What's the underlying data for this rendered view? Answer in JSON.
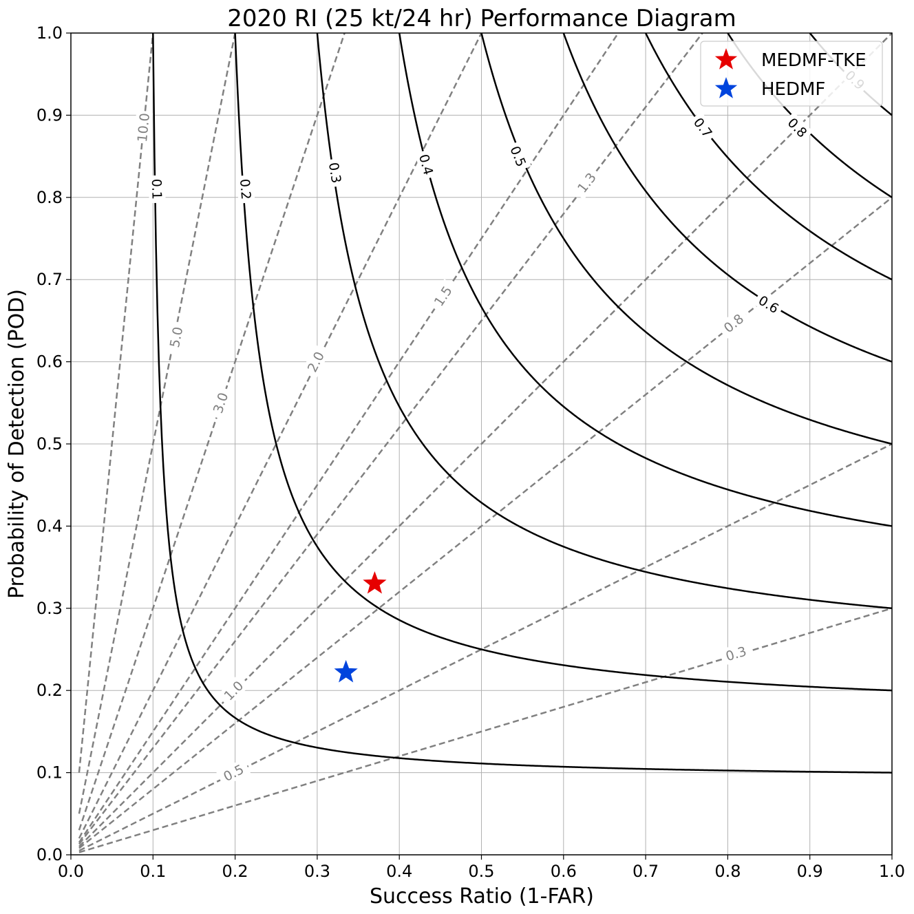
{
  "chart_data": {
    "type": "scatter",
    "title": "2020 RI (25 kt/24 hr) Performance Diagram",
    "xlabel": "Success Ratio (1-FAR)",
    "ylabel": "Probability of Detection (POD)",
    "xlim": [
      0,
      1
    ],
    "ylim": [
      0,
      1
    ],
    "x_ticks": [
      "0.0",
      "0.1",
      "0.2",
      "0.3",
      "0.4",
      "0.5",
      "0.6",
      "0.7",
      "0.8",
      "0.9",
      "1.0"
    ],
    "y_ticks": [
      "0.0",
      "0.1",
      "0.2",
      "0.3",
      "0.4",
      "0.5",
      "0.6",
      "0.7",
      "0.8",
      "0.9",
      "1.0"
    ],
    "grid": true,
    "legend_position": "top-right",
    "series": [
      {
        "name": "MEDMF-TKE",
        "x": 0.37,
        "y": 0.33,
        "marker": "star",
        "color": "#e60000"
      },
      {
        "name": "HEDMF",
        "x": 0.335,
        "y": 0.222,
        "marker": "star",
        "color": "#0044dd"
      }
    ],
    "csi_contours": [
      {
        "value": 0.1,
        "label": "0.1",
        "label_at": [
          0.105,
          0.81
        ]
      },
      {
        "value": 0.2,
        "label": "0.2",
        "label_at": [
          0.213,
          0.81
        ]
      },
      {
        "value": 0.3,
        "label": "0.3",
        "label_at": [
          0.322,
          0.83
        ]
      },
      {
        "value": 0.4,
        "label": "0.4",
        "label_at": [
          0.433,
          0.84
        ]
      },
      {
        "value": 0.5,
        "label": "0.5",
        "label_at": [
          0.545,
          0.85
        ]
      },
      {
        "value": 0.6,
        "label": "0.6",
        "label_at": [
          0.85,
          0.67
        ]
      },
      {
        "value": 0.7,
        "label": "0.7",
        "label_at": [
          0.77,
          0.885
        ]
      },
      {
        "value": 0.8,
        "label": "0.8",
        "label_at": [
          0.885,
          0.885
        ]
      },
      {
        "value": 0.9,
        "label": "0.9",
        "label_at": [
          0.955,
          0.943
        ]
      }
    ],
    "bias_lines": [
      {
        "value": 10.0,
        "label": "10.0",
        "label_at": [
          0.088,
          0.885
        ]
      },
      {
        "value": 5.0,
        "label": "5.0",
        "label_at": [
          0.128,
          0.63
        ]
      },
      {
        "value": 3.0,
        "label": "3.0",
        "label_at": [
          0.182,
          0.55
        ]
      },
      {
        "value": 2.0,
        "label": "2.0",
        "label_at": [
          0.298,
          0.6
        ]
      },
      {
        "value": 1.5,
        "label": "1.5",
        "label_at": [
          0.453,
          0.68
        ]
      },
      {
        "value": 1.3,
        "label": "1.3",
        "label_at": [
          0.628,
          0.818
        ]
      },
      {
        "value": 1.0,
        "label": "1.0",
        "label_at": [
          0.198,
          0.2
        ]
      },
      {
        "value": 0.8,
        "label": "0.8",
        "label_at": [
          0.807,
          0.647
        ]
      },
      {
        "value": 0.5,
        "label": "0.5",
        "label_at": [
          0.198,
          0.1
        ]
      },
      {
        "value": 0.3,
        "label": "0.3",
        "label_at": [
          0.81,
          0.245
        ]
      }
    ]
  }
}
